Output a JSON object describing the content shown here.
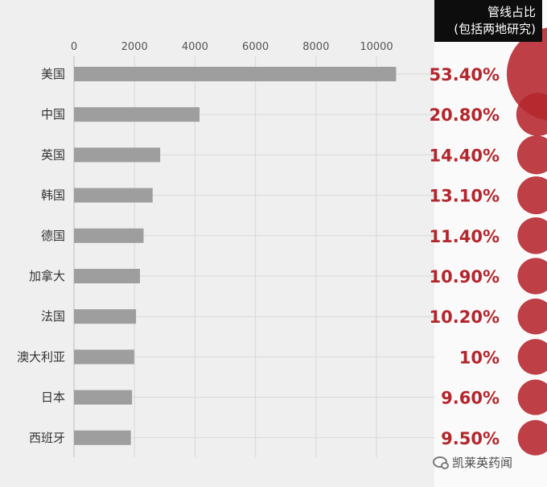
{
  "header": {
    "line1": "管线占比",
    "line2": "(包括两地研究)"
  },
  "footer": {
    "brand": "凯莱英药闻",
    "icon": "wechat-icon"
  },
  "colors": {
    "bar": "#9e9e9e",
    "pct_text": "#b3262c",
    "bubble": "#b5262c",
    "header_bg": "#0d0d0d"
  },
  "chart_data": {
    "type": "bar",
    "orientation": "horizontal",
    "categories": [
      "美国",
      "中国",
      "英国",
      "韩国",
      "德国",
      "加拿大",
      "法国",
      "澳大利亚",
      "日本",
      "西班牙"
    ],
    "values": [
      10650,
      4150,
      2850,
      2600,
      2300,
      2180,
      2050,
      1990,
      1920,
      1880
    ],
    "xlim": [
      0,
      11500
    ],
    "xticks": [
      "0",
      "2000",
      "4000",
      "6000",
      "8000",
      "10000"
    ],
    "xtick_values": [
      0,
      2000,
      4000,
      6000,
      8000,
      10000
    ],
    "grid": true,
    "pipeline_share": {
      "labels": [
        "53.40%",
        "20.80%",
        "14.40%",
        "13.10%",
        "11.40%",
        "10.90%",
        "10.20%",
        "10%",
        "9.60%",
        "9.50%"
      ],
      "values": [
        53.4,
        20.8,
        14.4,
        13.1,
        11.4,
        10.9,
        10.2,
        10.0,
        9.6,
        9.5
      ]
    }
  }
}
